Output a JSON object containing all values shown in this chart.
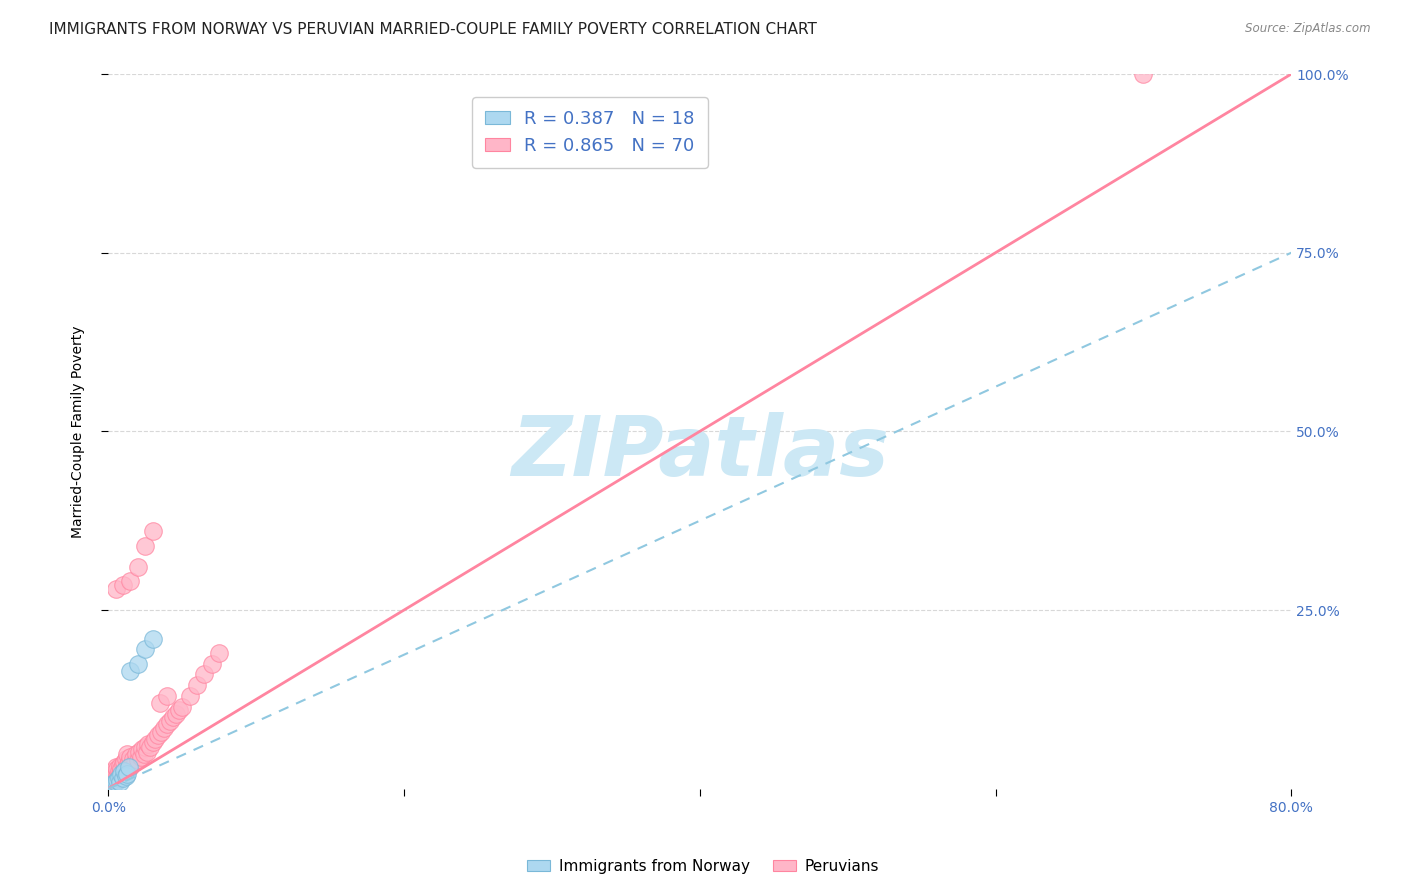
{
  "title": "IMMIGRANTS FROM NORWAY VS PERUVIAN MARRIED-COUPLE FAMILY POVERTY CORRELATION CHART",
  "source": "Source: ZipAtlas.com",
  "ylabel": "Married-Couple Family Poverty",
  "watermark": "ZIPatlas",
  "xlim": [
    0.0,
    0.8
  ],
  "ylim": [
    0.0,
    1.0
  ],
  "yticks_right": [
    0.0,
    0.25,
    0.5,
    0.75,
    1.0
  ],
  "ytick_right_labels": [
    "",
    "25.0%",
    "50.0%",
    "75.0%",
    "100.0%"
  ],
  "norway_R": 0.387,
  "norway_N": 18,
  "peru_R": 0.865,
  "peru_N": 70,
  "norway_color": "#add8f0",
  "peru_color": "#ffb6c8",
  "norway_edge_color": "#7ab8d8",
  "peru_edge_color": "#ff85a0",
  "norway_line_color": "#90c8e0",
  "peru_line_color": "#ff85a0",
  "norway_scatter_x": [
    0.001,
    0.002,
    0.003,
    0.004,
    0.005,
    0.006,
    0.007,
    0.008,
    0.009,
    0.01,
    0.011,
    0.012,
    0.013,
    0.014,
    0.015,
    0.02,
    0.025,
    0.03
  ],
  "norway_scatter_y": [
    0.002,
    0.005,
    0.005,
    0.008,
    0.01,
    0.012,
    0.015,
    0.01,
    0.02,
    0.015,
    0.025,
    0.018,
    0.02,
    0.03,
    0.165,
    0.175,
    0.195,
    0.21
  ],
  "peru_scatter_x": [
    0.001,
    0.001,
    0.002,
    0.002,
    0.002,
    0.003,
    0.003,
    0.003,
    0.004,
    0.004,
    0.005,
    0.005,
    0.005,
    0.006,
    0.006,
    0.007,
    0.007,
    0.008,
    0.008,
    0.009,
    0.009,
    0.01,
    0.01,
    0.011,
    0.011,
    0.012,
    0.012,
    0.013,
    0.013,
    0.014,
    0.015,
    0.015,
    0.016,
    0.017,
    0.018,
    0.019,
    0.02,
    0.021,
    0.022,
    0.023,
    0.024,
    0.025,
    0.026,
    0.027,
    0.028,
    0.03,
    0.032,
    0.034,
    0.036,
    0.038,
    0.04,
    0.042,
    0.044,
    0.046,
    0.048,
    0.05,
    0.055,
    0.06,
    0.065,
    0.07,
    0.075,
    0.005,
    0.01,
    0.015,
    0.02,
    0.025,
    0.03,
    0.035,
    0.04,
    0.7
  ],
  "peru_scatter_y": [
    0.005,
    0.01,
    0.008,
    0.015,
    0.02,
    0.01,
    0.018,
    0.025,
    0.015,
    0.022,
    0.012,
    0.02,
    0.03,
    0.018,
    0.028,
    0.015,
    0.025,
    0.02,
    0.032,
    0.018,
    0.028,
    0.022,
    0.035,
    0.025,
    0.038,
    0.028,
    0.042,
    0.032,
    0.048,
    0.038,
    0.03,
    0.045,
    0.035,
    0.042,
    0.038,
    0.048,
    0.04,
    0.052,
    0.045,
    0.055,
    0.048,
    0.058,
    0.052,
    0.062,
    0.058,
    0.065,
    0.07,
    0.075,
    0.08,
    0.085,
    0.09,
    0.095,
    0.1,
    0.105,
    0.11,
    0.115,
    0.13,
    0.145,
    0.16,
    0.175,
    0.19,
    0.28,
    0.285,
    0.29,
    0.31,
    0.34,
    0.36,
    0.12,
    0.13,
    1.0
  ],
  "norway_trend_x": [
    0.0,
    0.8
  ],
  "norway_trend_y": [
    0.0,
    0.75
  ],
  "peru_trend_x": [
    0.0,
    0.8
  ],
  "peru_trend_y": [
    0.0,
    1.0
  ],
  "title_fontsize": 11,
  "axis_label_fontsize": 10,
  "tick_fontsize": 10,
  "legend_fontsize": 13,
  "watermark_fontsize": 60,
  "watermark_color": "#cce8f5",
  "background_color": "#ffffff",
  "grid_color": "#d8d8d8",
  "right_tick_color": "#4472c4",
  "bottom_label_color": "#4472c4"
}
